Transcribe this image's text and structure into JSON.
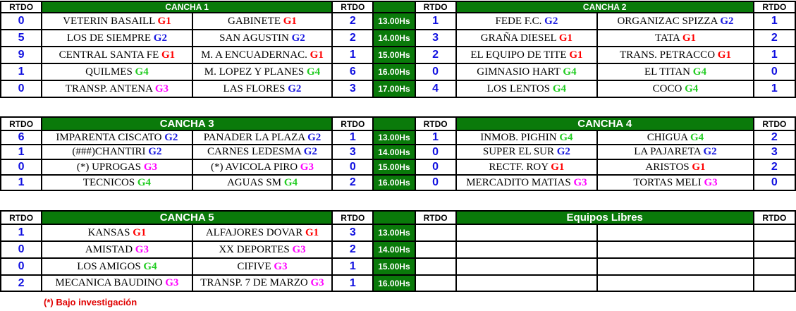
{
  "rtdo_label": "RTDO",
  "group_colors": {
    "G1": "#ff0000",
    "G2": "#1a1ae0",
    "G3": "#ff00ff",
    "G4": "#22cc22"
  },
  "blocks": [
    {
      "left_title": "CANCHA 1",
      "right_title": "CANCHA 2",
      "big": false,
      "rows": [
        {
          "r1": "0",
          "t1": "VETERIN BASAILL",
          "g1": "G1",
          "t2": "GABINETE ",
          "g2": "G1",
          "r2": "2",
          "time": "13.00Hs",
          "r3": "1",
          "t3": "FEDE F.C.",
          "g3": "G2",
          "t4": "ORGANIZAC SPIZZA",
          "g4": "G2",
          "r4": "1"
        },
        {
          "r1": "5",
          "t1": "LOS DE SIEMPRE",
          "g1": "G2",
          "t2": "SAN  AGUSTIN",
          "g2": "G2",
          "r2": "2",
          "time": "14.00Hs",
          "r3": "3",
          "t3": "GRAÑA  DIESEL",
          "g3": "G1",
          "t4": "TATA",
          "g4": "G1",
          "r4": "2"
        },
        {
          "r1": "9",
          "t1": "CENTRAL SANTA FE ",
          "g1": "G1",
          "t2": "M. A ENCUADERNAC.",
          "g2": "G1",
          "r2": "1",
          "time": "15.00Hs",
          "r3": "2",
          "t3": "EL EQUIPO DE TITE",
          "g3": "G1",
          "t4": "TRANS. PETRACCO",
          "g4": "G1",
          "r4": "1"
        },
        {
          "r1": "1",
          "t1": "QUILMES",
          "g1": "G4",
          "t2": "M. LOPEZ Y PLANES",
          "g2": "G4",
          "r2": "6",
          "time": "16.00Hs",
          "r3": "0",
          "t3": "GIMNASIO HART",
          "g3": "G4",
          "t4": "EL TITAN",
          "g4": "G4",
          "r4": "0"
        },
        {
          "r1": "0",
          "t1": "TRANSP. ANTENA",
          "g1": "G3",
          "t2": "LAS  FLORES",
          "g2": "G2",
          "r2": "3",
          "time": "17.00Hs",
          "r3": "4",
          "t3": "LOS LENTOS",
          "g3": "G4",
          "t4": "COCO",
          "g4": "G4",
          "r4": "1"
        }
      ]
    },
    {
      "left_title": "CANCHA 3",
      "right_title": "CANCHA 4",
      "big": true,
      "rows": [
        {
          "r1": "6",
          "t1": "IMPARENTA CISCATO",
          "g1": "G2",
          "t2": "PANADER LA  PLAZA",
          "g2": "G2",
          "r2": "1",
          "time": "13.00Hs",
          "r3": "1",
          "t3": "INMOB. PIGHIN",
          "g3": "G4",
          "t4": "CHIGUA",
          "g4": "G4",
          "r4": "2"
        },
        {
          "r1": "1",
          "t1": "(###)CHANTIRI",
          "g1": "G2",
          "t2": "CARNES LEDESMA",
          "g2": "G2",
          "r2": "3",
          "time": "14.00Hs",
          "r3": "0",
          "t3": "SUPER EL SUR",
          "g3": "G2",
          "t4": "LA PAJARETA",
          "g4": "G2",
          "r4": "3"
        },
        {
          "r1": "0",
          "t1": "(*)   UPROGAS",
          "g1": "G3",
          "t2": "(*)  AVICOLA PIRO",
          "g2": "G3",
          "r2": "0",
          "time": "15.00Hs",
          "r3": "0",
          "t3": "RECTF.  ROY",
          "g3": "G1",
          "t4": "ARISTOS ",
          "g4": "G1",
          "r4": "2"
        },
        {
          "r1": "1",
          "t1": "TECNICOS ",
          "g1": "G4",
          "t2": "AGUAS SM",
          "g2": "G4",
          "r2": "2",
          "time": "16.00Hs",
          "r3": "0",
          "t3": "MERCADITO MATIAS",
          "g3": "G3",
          "t4": "TORTAS MELI",
          "g4": "G3",
          "r4": "0"
        }
      ]
    },
    {
      "left_title": "CANCHA 5",
      "right_title": "Equipos Libres",
      "big": true,
      "rows": [
        {
          "r1": "1",
          "t1": "KANSAS",
          "g1": "G1",
          "t2": "ALFAJORES DOVAR",
          "g2": "G1",
          "r2": "3",
          "time": "13.00Hs",
          "r3": "",
          "t3": "",
          "g3": "",
          "t4": "",
          "g4": "",
          "r4": ""
        },
        {
          "r1": "0",
          "t1": "AMISTAD",
          "g1": "G3",
          "t2": "XX  DEPORTES ",
          "g2": "G3",
          "r2": "2",
          "time": "14.00Hs",
          "r3": "",
          "t3": "",
          "g3": "",
          "t4": "",
          "g4": "",
          "r4": ""
        },
        {
          "r1": "0",
          "t1": "LOS  AMIGOS",
          "g1": "G4",
          "t2": "CIFIVE ",
          "g2": "G3",
          "r2": "1",
          "time": "15.00Hs",
          "r3": "",
          "t3": "",
          "g3": "",
          "t4": "",
          "g4": "",
          "r4": ""
        },
        {
          "r1": "2",
          "t1": "MECANICA BAUDINO",
          "g1": "G3",
          "t2": "TRANSP. 7 DE MARZO",
          "g2": "G3",
          "r2": "1",
          "time": "16.00Hs",
          "r3": "",
          "t3": "",
          "g3": "",
          "t4": "",
          "g4": "",
          "r4": ""
        }
      ]
    }
  ],
  "footnote": "(*) Bajo investigación"
}
